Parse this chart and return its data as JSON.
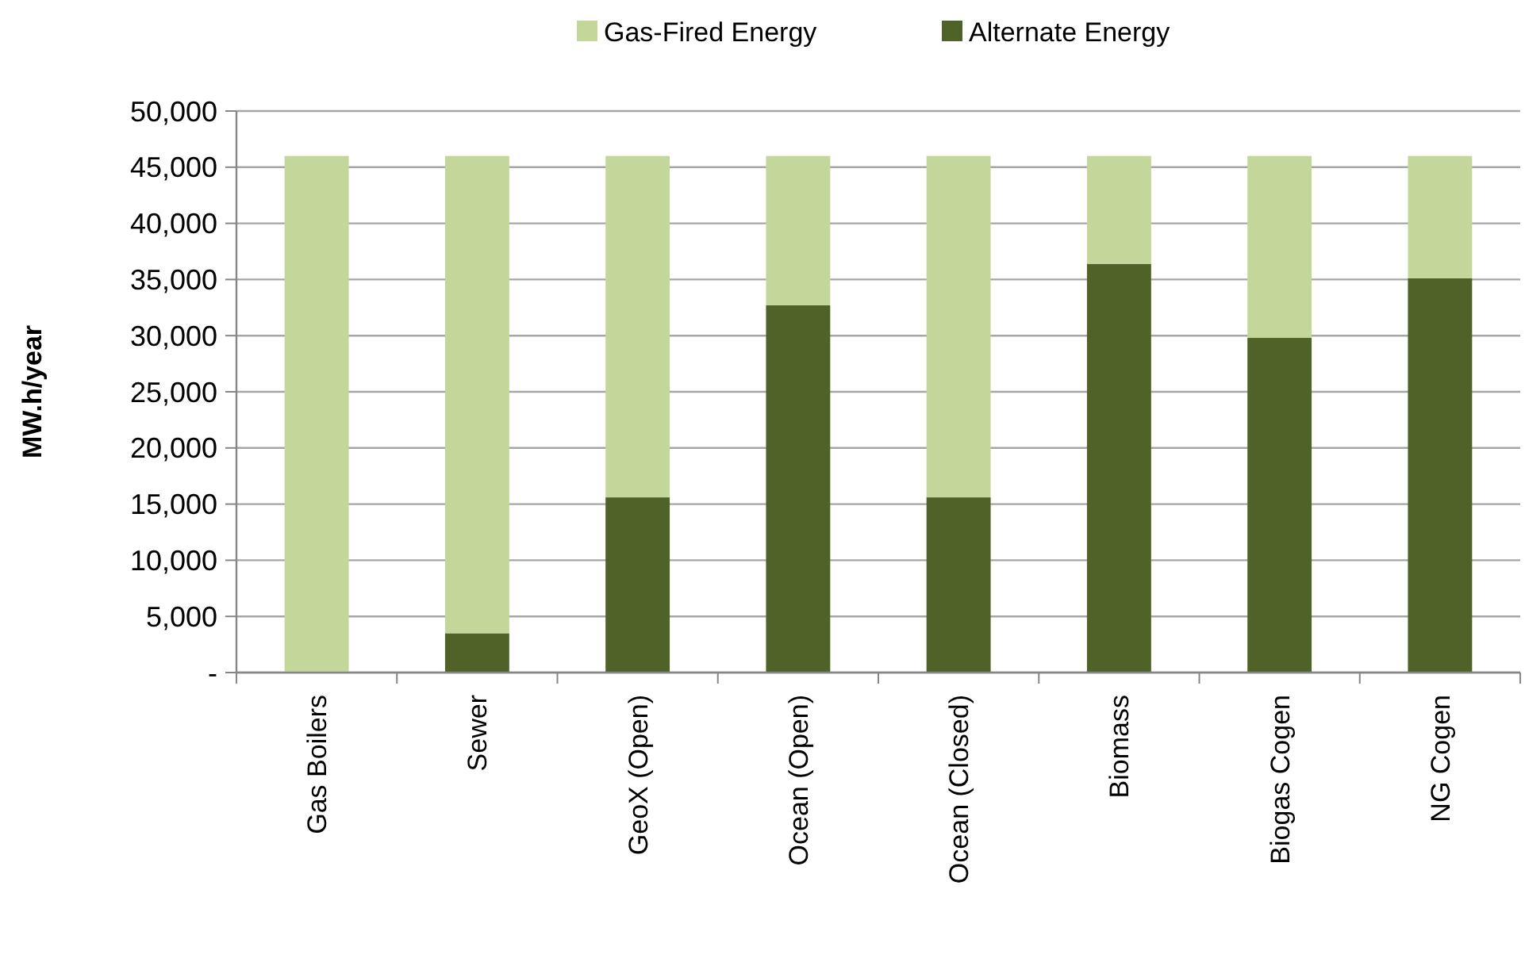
{
  "chart_data": {
    "type": "bar",
    "stacked": true,
    "ylabel": "MW.h/year",
    "categories": [
      "Gas Boilers",
      "Sewer",
      "GeoX (Open)",
      "Ocean (Open)",
      "Ocean (Closed)",
      "Biomass",
      "Biogas Cogen",
      "NG Cogen"
    ],
    "series": [
      {
        "name": "Alternate Energy",
        "color": "#4f6228",
        "values": [
          0,
          3500,
          15600,
          32700,
          15600,
          36400,
          29800,
          35100
        ]
      },
      {
        "name": "Gas-Fired Energy",
        "color": "#c4d79b",
        "values": [
          46000,
          42500,
          30400,
          13300,
          30400,
          9600,
          16200,
          10900
        ]
      }
    ],
    "ylim": [
      0,
      50000
    ],
    "yticks": [
      {
        "value": 0,
        "label": "-"
      },
      {
        "value": 5000,
        "label": "5,000"
      },
      {
        "value": 10000,
        "label": "10,000"
      },
      {
        "value": 15000,
        "label": "15,000"
      },
      {
        "value": 20000,
        "label": "20,000"
      },
      {
        "value": 25000,
        "label": "25,000"
      },
      {
        "value": 30000,
        "label": "30,000"
      },
      {
        "value": 35000,
        "label": "35,000"
      },
      {
        "value": 40000,
        "label": "40,000"
      },
      {
        "value": 45000,
        "label": "45,000"
      },
      {
        "value": 50000,
        "label": "50,000"
      }
    ],
    "grid": "y",
    "legend": "top"
  }
}
